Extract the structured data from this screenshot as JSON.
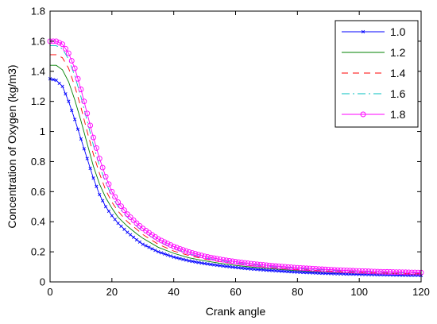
{
  "chart_data": {
    "type": "line",
    "title": "",
    "xlabel": "Crank angle",
    "ylabel": "Concentration of Oxygen (kg/m3)",
    "xlim": [
      0,
      120
    ],
    "ylim": [
      0,
      1.8
    ],
    "x_ticks": [
      "0",
      "20",
      "40",
      "60",
      "80",
      "100",
      "120"
    ],
    "y_ticks": [
      "0",
      "0.2",
      "0.4",
      "0.6",
      "0.8",
      "1",
      "1.2",
      "1.4",
      "1.6",
      "1.8"
    ],
    "grid": false,
    "legend_position": "top-right",
    "x": [
      0,
      2,
      4,
      6,
      8,
      10,
      12,
      14,
      16,
      18,
      20,
      22,
      25,
      28,
      30,
      35,
      40,
      45,
      50,
      55,
      60,
      65,
      70,
      75,
      80,
      85,
      90,
      95,
      100,
      105,
      110,
      115,
      120
    ],
    "series": [
      {
        "name": "1.0",
        "color": "#0000ff",
        "style": "solid",
        "marker": "x",
        "values": [
          1.35,
          1.34,
          1.3,
          1.2,
          1.08,
          0.95,
          0.82,
          0.69,
          0.58,
          0.5,
          0.44,
          0.39,
          0.33,
          0.28,
          0.25,
          0.2,
          0.165,
          0.14,
          0.122,
          0.108,
          0.096,
          0.086,
          0.078,
          0.071,
          0.065,
          0.06,
          0.056,
          0.053,
          0.05,
          0.048,
          0.046,
          0.044,
          0.043
        ]
      },
      {
        "name": "1.2",
        "color": "#008000",
        "style": "solid",
        "marker": "none",
        "values": [
          1.44,
          1.44,
          1.41,
          1.33,
          1.21,
          1.07,
          0.92,
          0.77,
          0.65,
          0.56,
          0.49,
          0.43,
          0.37,
          0.32,
          0.29,
          0.23,
          0.19,
          0.16,
          0.14,
          0.124,
          0.11,
          0.099,
          0.09,
          0.082,
          0.075,
          0.07,
          0.065,
          0.061,
          0.058,
          0.055,
          0.053,
          0.051,
          0.05
        ]
      },
      {
        "name": "1.4",
        "color": "#ff0000",
        "style": "dashed",
        "marker": "none",
        "values": [
          1.51,
          1.51,
          1.49,
          1.42,
          1.3,
          1.16,
          1.0,
          0.85,
          0.72,
          0.61,
          0.53,
          0.47,
          0.4,
          0.35,
          0.315,
          0.25,
          0.205,
          0.175,
          0.152,
          0.134,
          0.12,
          0.108,
          0.098,
          0.09,
          0.083,
          0.077,
          0.072,
          0.068,
          0.064,
          0.061,
          0.058,
          0.056,
          0.055
        ]
      },
      {
        "name": "1.6",
        "color": "#00bfbf",
        "style": "dashdot",
        "marker": "none",
        "values": [
          1.57,
          1.57,
          1.55,
          1.48,
          1.37,
          1.23,
          1.07,
          0.91,
          0.77,
          0.66,
          0.57,
          0.5,
          0.43,
          0.37,
          0.335,
          0.27,
          0.22,
          0.185,
          0.16,
          0.142,
          0.127,
          0.115,
          0.105,
          0.097,
          0.089,
          0.083,
          0.078,
          0.073,
          0.069,
          0.066,
          0.063,
          0.061,
          0.06
        ]
      },
      {
        "name": "1.8",
        "color": "#ff00ff",
        "style": "solid",
        "marker": "o",
        "values": [
          1.6,
          1.6,
          1.58,
          1.52,
          1.42,
          1.28,
          1.12,
          0.96,
          0.82,
          0.7,
          0.6,
          0.53,
          0.45,
          0.39,
          0.355,
          0.285,
          0.235,
          0.198,
          0.17,
          0.15,
          0.134,
          0.121,
          0.111,
          0.102,
          0.094,
          0.088,
          0.082,
          0.077,
          0.073,
          0.069,
          0.066,
          0.064,
          0.062
        ]
      }
    ]
  }
}
